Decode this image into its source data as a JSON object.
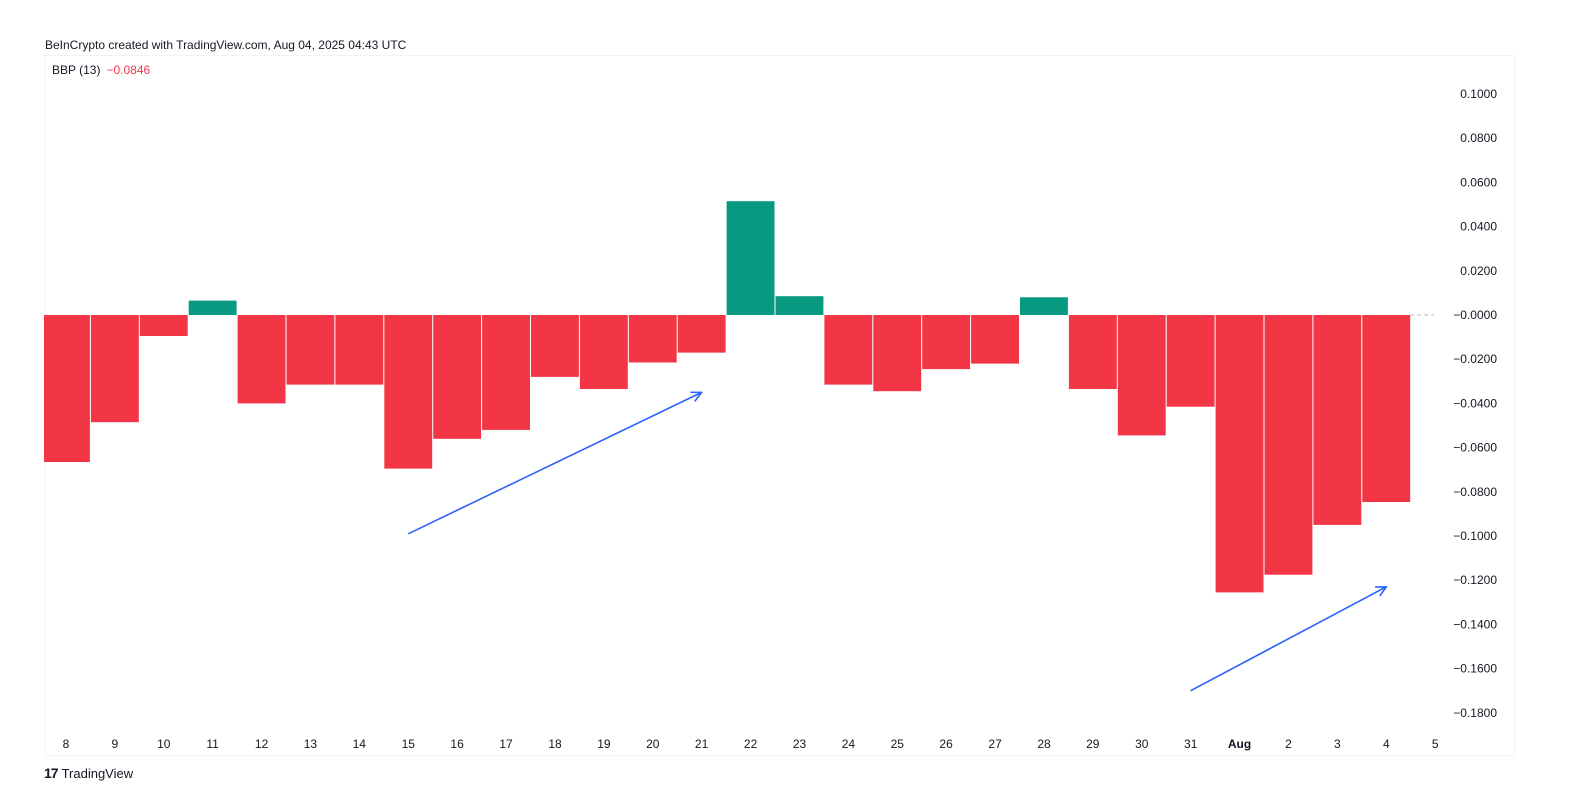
{
  "caption": "BeInCrypto created with TradingView.com, Aug 04, 2025 04:43 UTC",
  "legend": {
    "label": "BBP (13)",
    "value": "−0.0846"
  },
  "footer": {
    "brand": "TradingView",
    "logo_glyph": "17"
  },
  "colors": {
    "negative": "#f23645",
    "positive": "#089981",
    "arrow": "#2962ff",
    "zero_line": "#b2b5be",
    "axis_text": "#131722"
  },
  "chart_data": {
    "type": "bar",
    "categories": [
      "8",
      "9",
      "10",
      "11",
      "12",
      "13",
      "14",
      "15",
      "16",
      "17",
      "18",
      "19",
      "20",
      "21",
      "22",
      "23",
      "24",
      "25",
      "26",
      "27",
      "28",
      "29",
      "30",
      "31",
      "Aug",
      "2",
      "3",
      "4"
    ],
    "values": [
      -0.0665,
      -0.0485,
      -0.0095,
      0.0065,
      -0.04,
      -0.0315,
      -0.0315,
      -0.0695,
      -0.056,
      -0.052,
      -0.028,
      -0.0335,
      -0.0215,
      -0.017,
      0.0515,
      0.0085,
      -0.0315,
      -0.0345,
      -0.0245,
      -0.022,
      0.008,
      -0.0335,
      -0.0545,
      -0.0415,
      -0.1255,
      -0.1175,
      -0.095,
      -0.0846
    ],
    "x_tick_labels": [
      "8",
      "9",
      "10",
      "11",
      "12",
      "13",
      "14",
      "15",
      "16",
      "17",
      "18",
      "19",
      "20",
      "21",
      "22",
      "23",
      "24",
      "25",
      "26",
      "27",
      "28",
      "29",
      "30",
      "31",
      "Aug",
      "2",
      "3",
      "4",
      "5"
    ],
    "y_tick_labels": [
      "0.1000",
      "0.0800",
      "0.0600",
      "0.0400",
      "0.0200",
      "−0.0000",
      "−0.0200",
      "−0.0400",
      "−0.0600",
      "−0.0800",
      "−0.1000",
      "−0.1200",
      "−0.1400",
      "−0.1600",
      "−0.1800"
    ],
    "ylim": [
      -0.19,
      0.11
    ],
    "grid": false,
    "annotations": [
      {
        "type": "arrow",
        "from": {
          "x": "15",
          "y": -0.099
        },
        "to": {
          "x": "21",
          "y": -0.035
        }
      },
      {
        "type": "arrow",
        "from": {
          "x": "31",
          "y": -0.17
        },
        "to": {
          "x": "4",
          "y": -0.123
        }
      }
    ]
  }
}
